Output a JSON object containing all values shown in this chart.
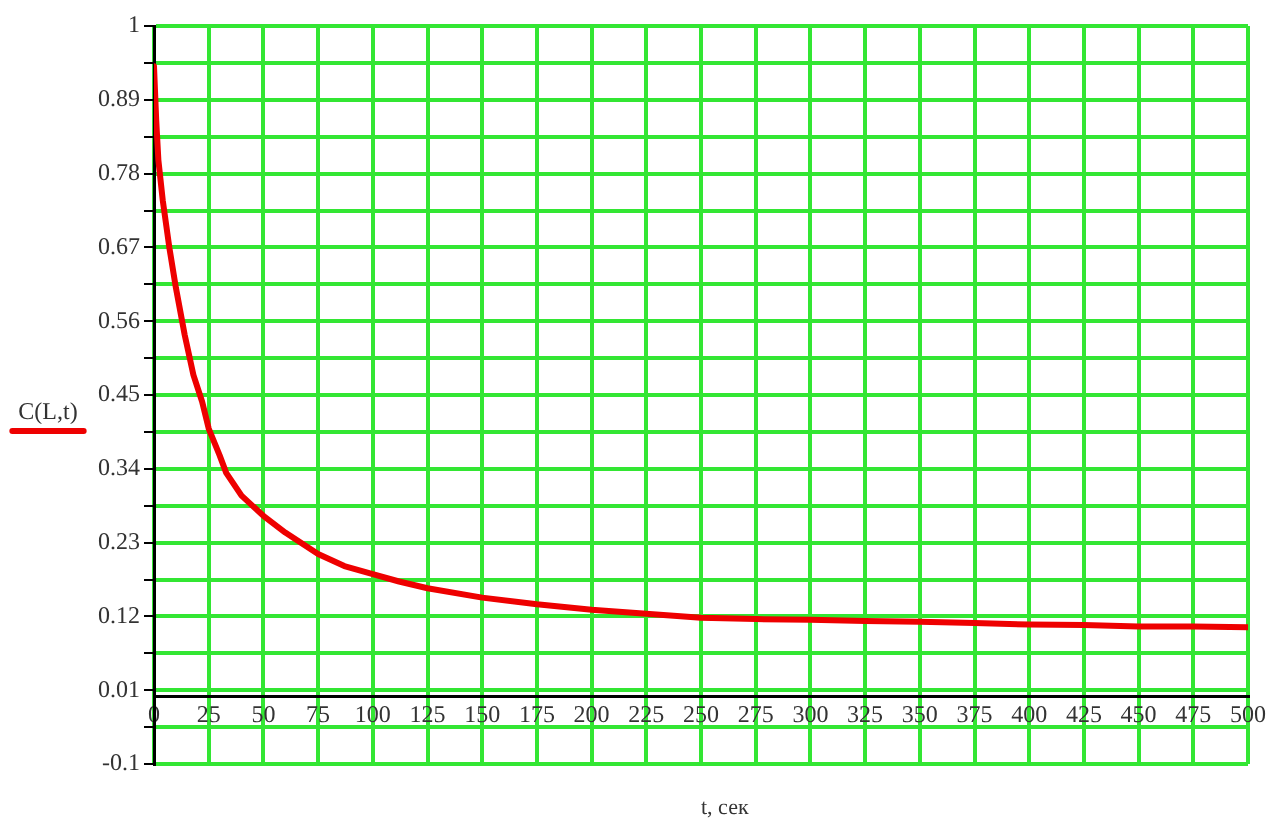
{
  "chart_data": {
    "type": "line",
    "xlabel": "t, сек",
    "x": [
      0,
      1,
      2,
      4,
      7,
      10,
      14,
      18,
      22,
      25,
      30,
      33,
      40,
      50,
      60,
      75,
      87,
      100,
      112,
      125,
      150,
      175,
      200,
      225,
      250,
      275,
      300,
      325,
      350,
      375,
      400,
      425,
      450,
      475,
      500
    ],
    "series": [
      {
        "name": "C(L,t)",
        "color": "#ee0000",
        "values": [
          0.94,
          0.86,
          0.8,
          0.74,
          0.67,
          0.61,
          0.54,
          0.48,
          0.44,
          0.4,
          0.36,
          0.334,
          0.3,
          0.27,
          0.245,
          0.213,
          0.195,
          0.183,
          0.172,
          0.162,
          0.148,
          0.138,
          0.13,
          0.124,
          0.118,
          0.116,
          0.115,
          0.113,
          0.112,
          0.11,
          0.108,
          0.107,
          0.105,
          0.105,
          0.104
        ]
      }
    ],
    "xlim": [
      0,
      500
    ],
    "xticks": [
      0,
      25,
      50,
      75,
      100,
      125,
      150,
      175,
      200,
      225,
      250,
      275,
      300,
      325,
      350,
      375,
      400,
      425,
      450,
      475,
      500
    ],
    "ylim": [
      -0.1,
      1
    ],
    "yticks": [
      -0.1,
      {
        "value": -0.045,
        "label": null
      },
      0.01,
      {
        "value": 0.065,
        "label": null
      },
      0.12,
      {
        "value": 0.175,
        "label": null
      },
      0.23,
      {
        "value": 0.285,
        "label": null
      },
      0.34,
      {
        "value": 0.395,
        "label": null
      },
      0.45,
      {
        "value": 0.505,
        "label": null
      },
      0.56,
      {
        "value": 0.615,
        "label": null
      },
      0.67,
      {
        "value": 0.725,
        "label": null
      },
      0.78,
      {
        "value": 0.835,
        "label": null
      },
      0.89,
      {
        "value": 0.945,
        "label": null
      },
      1
    ],
    "grid": true,
    "legend": "left",
    "marker": "none",
    "line_style": "solid"
  }
}
